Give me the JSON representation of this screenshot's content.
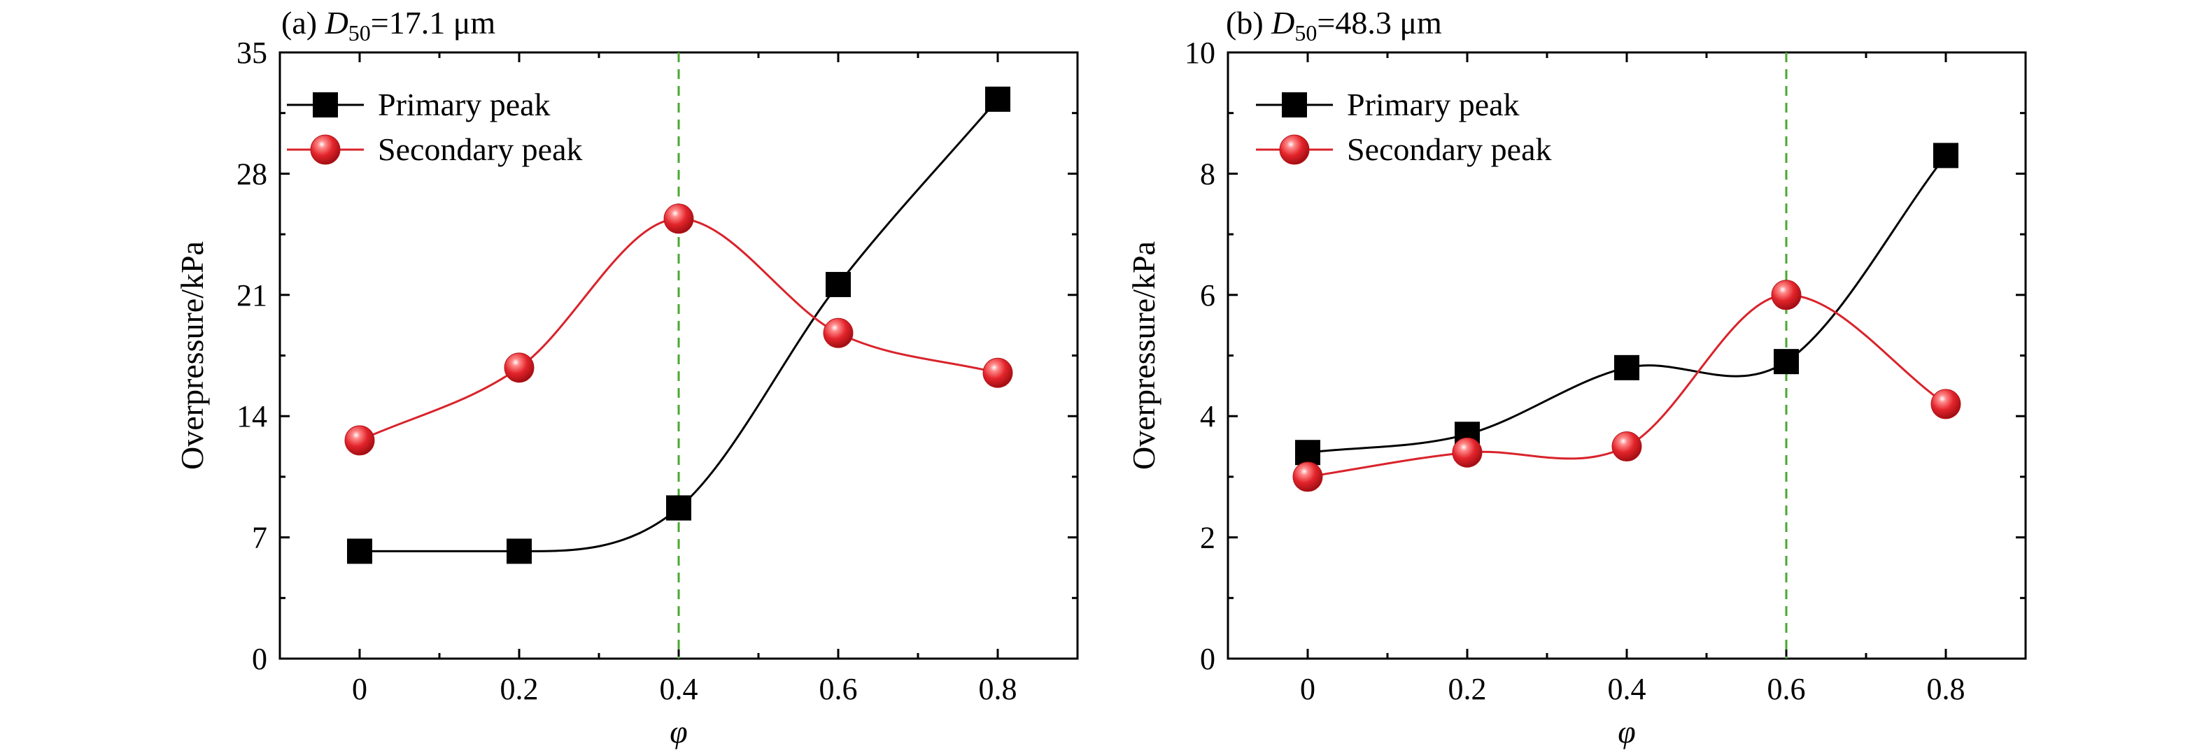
{
  "chart_data": [
    {
      "type": "line",
      "panel_label": "(a)",
      "title_var": "D",
      "title_sub": "50",
      "title_value": "=17.1 μm",
      "xlabel": "φ",
      "ylabel": "Overpressure/kPa",
      "x": [
        0,
        0.2,
        0.4,
        0.6,
        0.8
      ],
      "xticks": [
        "0",
        "0.2",
        "0.4",
        "0.6",
        "0.8"
      ],
      "xlim": [
        -0.1,
        0.9
      ],
      "ylim": [
        0,
        35
      ],
      "yticks": [
        "0",
        "7",
        "14",
        "21",
        "28",
        "35"
      ],
      "reference_x": 0.4,
      "reference_color": "#4aa832",
      "legend_position": "top-left",
      "series": [
        {
          "name": "Primary peak",
          "marker": "square",
          "color": "#000000",
          "values": [
            6.2,
            6.2,
            8.7,
            21.6,
            32.3
          ]
        },
        {
          "name": "Secondary peak",
          "marker": "sphere",
          "color": "#d9232b",
          "values": [
            12.6,
            16.8,
            25.4,
            18.8,
            16.5
          ]
        }
      ]
    },
    {
      "type": "line",
      "panel_label": "(b)",
      "title_var": "D",
      "title_sub": "50",
      "title_value": "=48.3 μm",
      "xlabel": "φ",
      "ylabel": "Overpressure/kPa",
      "x": [
        0,
        0.2,
        0.4,
        0.6,
        0.8
      ],
      "xticks": [
        "0",
        "0.2",
        "0.4",
        "0.6",
        "0.8"
      ],
      "xlim": [
        -0.1,
        0.9
      ],
      "ylim": [
        0,
        10
      ],
      "yticks": [
        "0",
        "2",
        "4",
        "6",
        "8",
        "10"
      ],
      "reference_x": 0.6,
      "reference_color": "#4aa832",
      "legend_position": "top-left",
      "series": [
        {
          "name": "Primary peak",
          "marker": "square",
          "color": "#000000",
          "values": [
            3.4,
            3.7,
            4.8,
            4.9,
            8.3
          ]
        },
        {
          "name": "Secondary peak",
          "marker": "sphere",
          "color": "#d9232b",
          "values": [
            3.0,
            3.4,
            3.5,
            6.0,
            4.2
          ]
        }
      ]
    }
  ]
}
